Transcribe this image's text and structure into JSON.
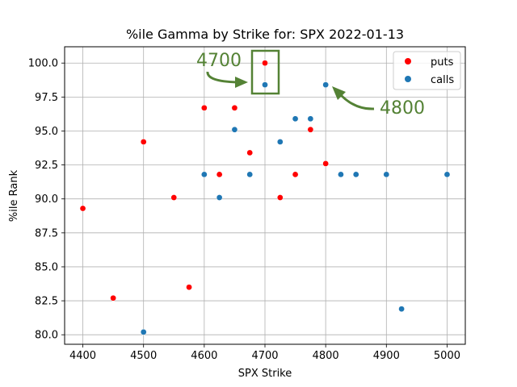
{
  "chart_data": {
    "type": "scatter",
    "title": "%ile Gamma by Strike for: SPX 2022-01-13",
    "xlabel": "SPX Strike",
    "ylabel": "%ile Rank",
    "xlim": [
      4370,
      5030
    ],
    "ylim": [
      79.3,
      101.2
    ],
    "xticks": [
      4400,
      4500,
      4600,
      4700,
      4800,
      4900,
      5000
    ],
    "yticks": [
      80.0,
      82.5,
      85.0,
      87.5,
      90.0,
      92.5,
      95.0,
      97.5,
      100.0
    ],
    "xtick_labels": [
      "4400",
      "4500",
      "4600",
      "4700",
      "4800",
      "4900",
      "5000"
    ],
    "ytick_labels": [
      "80.0",
      "82.5",
      "85.0",
      "87.5",
      "90.0",
      "92.5",
      "95.0",
      "97.5",
      "100.0"
    ],
    "grid": true,
    "legend_position": "top-right",
    "series": [
      {
        "name": "puts",
        "color": "#ff0000",
        "points": [
          {
            "x": 4400,
            "y": 89.3
          },
          {
            "x": 4450,
            "y": 82.7
          },
          {
            "x": 4500,
            "y": 94.2
          },
          {
            "x": 4550,
            "y": 90.1
          },
          {
            "x": 4575,
            "y": 83.5
          },
          {
            "x": 4600,
            "y": 96.7
          },
          {
            "x": 4625,
            "y": 91.8
          },
          {
            "x": 4650,
            "y": 96.7
          },
          {
            "x": 4675,
            "y": 93.4
          },
          {
            "x": 4700,
            "y": 100.0
          },
          {
            "x": 4725,
            "y": 90.1
          },
          {
            "x": 4750,
            "y": 91.8
          },
          {
            "x": 4775,
            "y": 95.1
          },
          {
            "x": 4800,
            "y": 92.6
          }
        ]
      },
      {
        "name": "calls",
        "color": "#1f77b4",
        "points": [
          {
            "x": 4500,
            "y": 80.2
          },
          {
            "x": 4600,
            "y": 91.8
          },
          {
            "x": 4625,
            "y": 90.1
          },
          {
            "x": 4650,
            "y": 95.1
          },
          {
            "x": 4675,
            "y": 91.8
          },
          {
            "x": 4700,
            "y": 98.4
          },
          {
            "x": 4725,
            "y": 94.2
          },
          {
            "x": 4750,
            "y": 95.9
          },
          {
            "x": 4775,
            "y": 95.9
          },
          {
            "x": 4800,
            "y": 98.4
          },
          {
            "x": 4825,
            "y": 91.8
          },
          {
            "x": 4850,
            "y": 91.8
          },
          {
            "x": 4900,
            "y": 91.8
          },
          {
            "x": 4925,
            "y": 81.9
          },
          {
            "x": 5000,
            "y": 91.8
          }
        ]
      }
    ],
    "annotations": [
      {
        "text": "4700",
        "color": "#548235"
      },
      {
        "text": "4800",
        "color": "#548235"
      }
    ]
  }
}
